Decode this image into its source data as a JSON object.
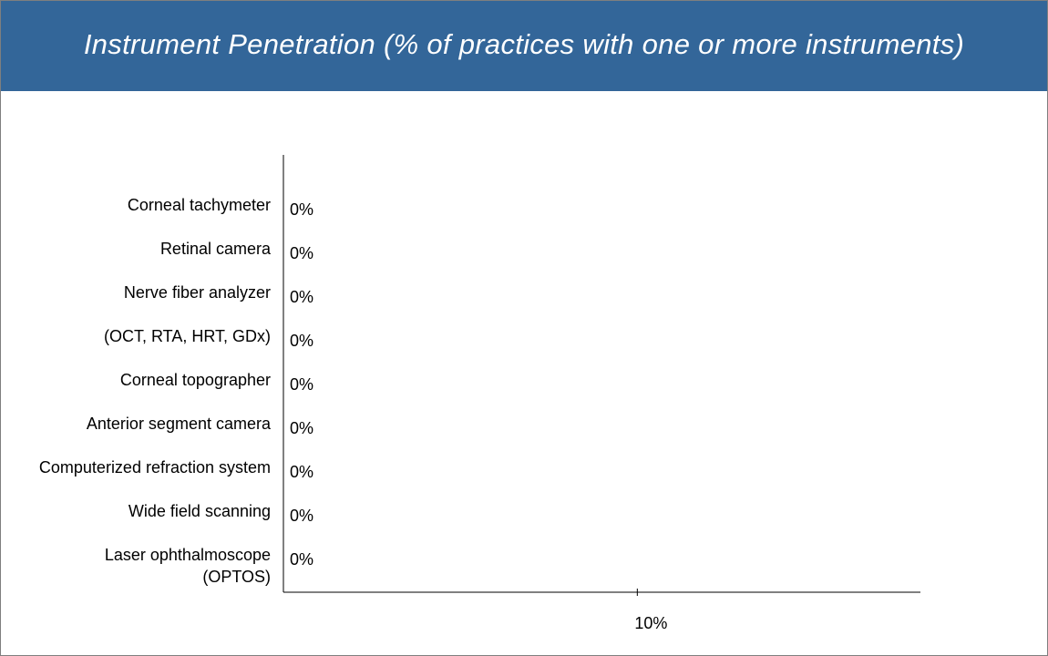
{
  "chart_data": {
    "type": "bar",
    "orientation": "horizontal",
    "title": "Instrument Penetration (% of practices with one or more instruments)",
    "categories": [
      [
        "Corneal tachymeter"
      ],
      [
        "Retinal camera"
      ],
      [
        "Nerve fiber analyzer"
      ],
      [
        "(OCT, RTA, HRT, GDx)"
      ],
      [
        "Corneal topographer"
      ],
      [
        "Anterior segment camera"
      ],
      [
        "Computerized refraction system"
      ],
      [
        "Wide field scanning"
      ],
      [
        "Laser ophthalmoscope",
        "(OPTOS)"
      ]
    ],
    "values": [
      0,
      0,
      0,
      0,
      0,
      0,
      0,
      0,
      0
    ],
    "data_labels": [
      "0%",
      "0%",
      "0%",
      "0%",
      "0%",
      "0%",
      "0%",
      "0%",
      "0%"
    ],
    "x_ticks": [
      {
        "value": 10,
        "label": "10%"
      }
    ],
    "xlim": [
      0,
      18
    ],
    "grid": false,
    "legend": "none",
    "bar_color": "#336699"
  },
  "colors": {
    "header_background": "#336699",
    "header_text": "#ffffff",
    "axis": "#000000",
    "border": "#7f7f7f"
  }
}
